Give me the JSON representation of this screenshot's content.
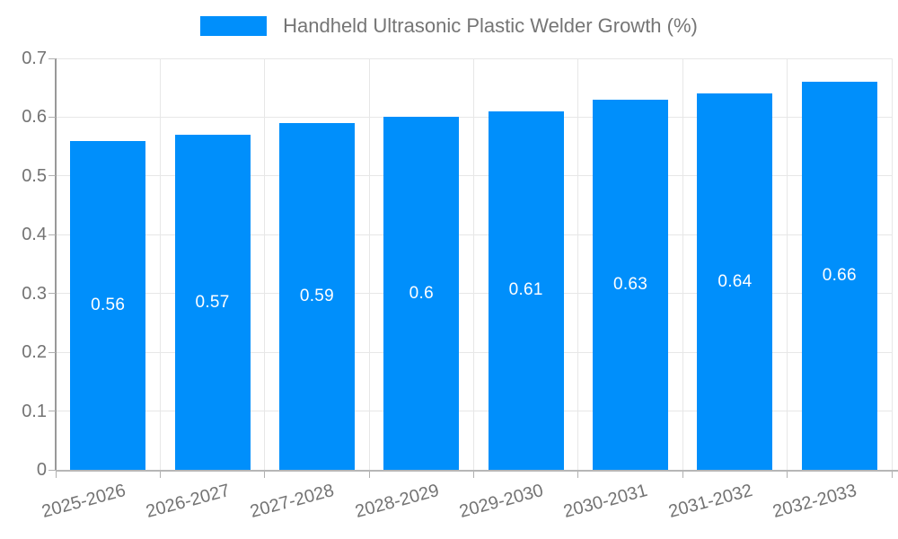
{
  "legend": {
    "label": "Handheld Ultrasonic Plastic Welder Growth (%)"
  },
  "chart_data": {
    "type": "bar",
    "title": "Handheld Ultrasonic Plastic Welder Growth (%)",
    "xlabel": "",
    "ylabel": "",
    "categories": [
      "2025-2026",
      "2026-2027",
      "2027-2028",
      "2028-2029",
      "2029-2030",
      "2030-2031",
      "2031-2032",
      "2032-2033"
    ],
    "values": [
      0.56,
      0.57,
      0.59,
      0.6,
      0.61,
      0.63,
      0.64,
      0.66
    ],
    "value_labels": [
      "0.56",
      "0.57",
      "0.59",
      "0.6",
      "0.61",
      "0.63",
      "0.64",
      "0.66"
    ],
    "ylim": [
      0,
      0.7
    ],
    "ytick_step": 0.1,
    "ytick_labels": [
      "0",
      "0.1",
      "0.2",
      "0.3",
      "0.4",
      "0.5",
      "0.6",
      "0.7"
    ],
    "grid": true,
    "legend_position": "top",
    "series_name": "Handheld Ultrasonic Plastic Welder Growth (%)",
    "colors": {
      "bar": "#008FFB",
      "value_label": "#FFFFFF",
      "axis_label": "#737373",
      "legend_label": "#757575",
      "grid_line": "#E7E7E7",
      "y_axis_line": "#999999",
      "x_axis_line": "#B6B6B6",
      "tick": "#B0B0B0",
      "background": "#FFFFFF"
    }
  }
}
